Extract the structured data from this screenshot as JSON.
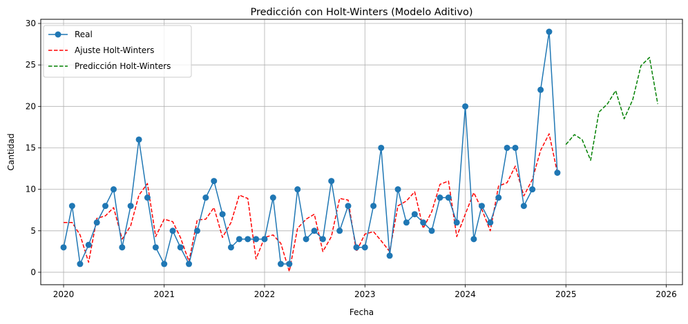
{
  "chart_data": {
    "type": "line",
    "title": "Predicción con Holt-Winters (Modelo Aditivo)",
    "xlabel": "Fecha",
    "ylabel": "Cantidad",
    "xlim": [
      "2019-10-10",
      "2026-03-01"
    ],
    "ylim": [
      -1.5,
      30.5
    ],
    "xticks": [
      "2020",
      "2021",
      "2022",
      "2023",
      "2024",
      "2025",
      "2026"
    ],
    "yticks": [
      0,
      5,
      10,
      15,
      20,
      25,
      30
    ],
    "grid": true,
    "legend_position": "top-left",
    "colors": {
      "real": "#1f77b4",
      "fit": "#ff0000",
      "forecast": "#008000",
      "grid": "#b0b0b0"
    },
    "series": [
      {
        "name": "Real",
        "style": "solid-marker",
        "x": [
          "2020-01",
          "2020-02",
          "2020-03",
          "2020-04",
          "2020-05",
          "2020-06",
          "2020-07",
          "2020-08",
          "2020-09",
          "2020-10",
          "2020-11",
          "2020-12",
          "2021-01",
          "2021-02",
          "2021-03",
          "2021-04",
          "2021-05",
          "2021-06",
          "2021-07",
          "2021-08",
          "2021-09",
          "2021-10",
          "2021-11",
          "2021-12",
          "2022-01",
          "2022-02",
          "2022-03",
          "2022-04",
          "2022-05",
          "2022-06",
          "2022-07",
          "2022-08",
          "2022-09",
          "2022-10",
          "2022-11",
          "2022-12",
          "2023-01",
          "2023-02",
          "2023-03",
          "2023-04",
          "2023-05",
          "2023-06",
          "2023-07",
          "2023-08",
          "2023-09",
          "2023-10",
          "2023-11",
          "2023-12",
          "2024-01",
          "2024-02",
          "2024-03",
          "2024-04",
          "2024-05",
          "2024-06",
          "2024-07",
          "2024-08",
          "2024-09",
          "2024-10",
          "2024-11",
          "2024-12"
        ],
        "values": [
          3,
          8,
          1,
          3.3,
          6,
          8,
          10,
          3,
          8,
          16,
          9,
          3,
          1,
          5,
          3,
          1,
          5,
          9,
          11,
          7,
          3,
          4,
          4,
          4,
          4,
          9,
          1,
          1,
          10,
          4,
          5,
          4,
          11,
          5,
          8,
          3,
          3,
          8,
          15,
          2,
          10,
          6,
          7,
          6,
          5,
          9,
          9,
          6,
          20,
          4,
          8,
          6,
          9,
          15,
          15,
          8,
          10,
          22,
          29,
          12
        ]
      },
      {
        "name": "Ajuste Holt-Winters",
        "style": "dashed",
        "x": [
          "2020-01",
          "2020-02",
          "2020-03",
          "2020-04",
          "2020-05",
          "2020-06",
          "2020-07",
          "2020-08",
          "2020-09",
          "2020-10",
          "2020-11",
          "2020-12",
          "2021-01",
          "2021-02",
          "2021-03",
          "2021-04",
          "2021-05",
          "2021-06",
          "2021-07",
          "2021-08",
          "2021-09",
          "2021-10",
          "2021-11",
          "2021-12",
          "2022-01",
          "2022-02",
          "2022-03",
          "2022-04",
          "2022-05",
          "2022-06",
          "2022-07",
          "2022-08",
          "2022-09",
          "2022-10",
          "2022-11",
          "2022-12",
          "2023-01",
          "2023-02",
          "2023-03",
          "2023-04",
          "2023-05",
          "2023-06",
          "2023-07",
          "2023-08",
          "2023-09",
          "2023-10",
          "2023-11",
          "2023-12",
          "2024-01",
          "2024-02",
          "2024-03",
          "2024-04",
          "2024-05",
          "2024-06",
          "2024-07",
          "2024-08",
          "2024-09",
          "2024-10",
          "2024-11",
          "2024-12"
        ],
        "values": [
          6,
          6,
          4.5,
          1.2,
          6.5,
          6.8,
          7.8,
          4,
          5.6,
          9.3,
          10.7,
          4.3,
          6.4,
          6.1,
          4.2,
          1.3,
          6.3,
          6.4,
          7.8,
          4.2,
          6,
          9.3,
          8.9,
          1.6,
          4.2,
          4.5,
          3.5,
          0.1,
          5.3,
          6.4,
          7,
          2.5,
          4.3,
          8.9,
          8.7,
          2.5,
          4.6,
          4.9,
          3.8,
          2.5,
          8,
          8.6,
          9.7,
          5.3,
          7.3,
          10.6,
          11,
          4.3,
          7,
          9.6,
          7.6,
          5,
          10.4,
          10.8,
          12.8,
          9.2,
          11.2,
          14.7,
          16.7,
          12
        ]
      },
      {
        "name": "Predicción Holt-Winters",
        "style": "dashed",
        "x": [
          "2025-01",
          "2025-02",
          "2025-03",
          "2025-04",
          "2025-05",
          "2025-06",
          "2025-07",
          "2025-08",
          "2025-09",
          "2025-10",
          "2025-11",
          "2025-12"
        ],
        "values": [
          15.4,
          16.6,
          16,
          13.5,
          19.3,
          20.3,
          21.9,
          18.5,
          20.8,
          24.9,
          25.9,
          20.3
        ]
      }
    ]
  }
}
